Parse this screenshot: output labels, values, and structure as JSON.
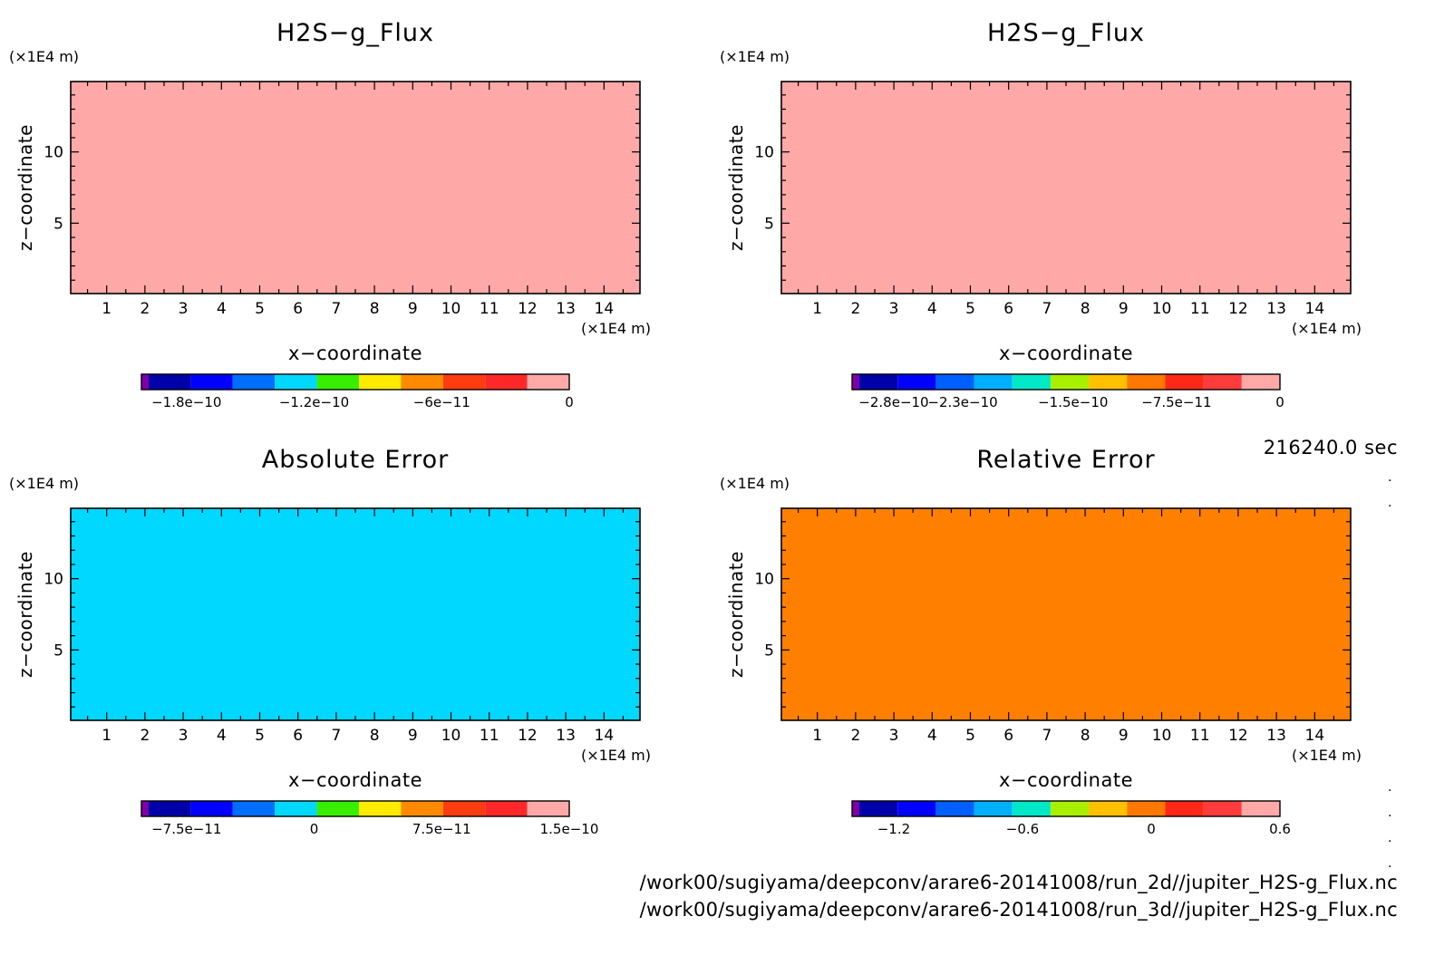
{
  "time_label": "216240.0 sec",
  "footer": {
    "line1": "/work00/sugiyama/deepconv/arare6-20141008/run_2d//jupiter_H2S-g_Flux.nc",
    "line2": "/work00/sugiyama/deepconv/arare6-20141008/run_3d//jupiter_H2S-g_Flux.nc"
  },
  "chart_data": [
    {
      "type": "heatmap",
      "title": "H2S−g_Flux",
      "xlabel": "x−coordinate",
      "ylabel": "z−coordinate",
      "x_unit": "(×1E4 m)",
      "y_unit": "(×1E4 m)",
      "xlim": [
        0.06,
        14.94
      ],
      "ylim": [
        0.06,
        14.94
      ],
      "x_ticks": [
        "1",
        "2",
        "3",
        "4",
        "5",
        "6",
        "7",
        "8",
        "9",
        "10",
        "11",
        "12",
        "13",
        "14"
      ],
      "y_ticks": [
        "5",
        "10"
      ],
      "field_color": "#ffa8a8",
      "field_description": "uniform field at top colour level (0)",
      "colorbar": {
        "colors": [
          "#7f00a8",
          "#0000a8",
          "#0000ff",
          "#006fff",
          "#00d8ff",
          "#38ee00",
          "#ffea00",
          "#ff8a00",
          "#ff3b10",
          "#ff2828",
          "#ffa8a8"
        ],
        "labels": [
          "−1.8e−10",
          "−1.2e−10",
          "−6e−11",
          "0"
        ],
        "label_values": [
          -1.8e-10,
          -1.2e-10,
          -6e-11,
          0
        ]
      }
    },
    {
      "type": "heatmap",
      "title": "H2S−g_Flux",
      "xlabel": "x−coordinate",
      "ylabel": "z−coordinate",
      "x_unit": "(×1E4 m)",
      "y_unit": "(×1E4 m)",
      "xlim": [
        0.06,
        14.94
      ],
      "ylim": [
        0.06,
        14.94
      ],
      "x_ticks": [
        "1",
        "2",
        "3",
        "4",
        "5",
        "6",
        "7",
        "8",
        "9",
        "10",
        "11",
        "12",
        "13",
        "14"
      ],
      "y_ticks": [
        "5",
        "10"
      ],
      "field_color": "#ffa8a8",
      "field_description": "uniform field at top colour level (0)",
      "colorbar": {
        "colors": [
          "#7f00a8",
          "#0000a8",
          "#0000ff",
          "#0060ff",
          "#00b0ff",
          "#00e8c8",
          "#a8f000",
          "#ffc000",
          "#ff7800",
          "#ff2818",
          "#ff3c3c",
          "#ffa8a8"
        ],
        "labels": [
          "−2.8e−10",
          "−2.3e−10",
          "−1.5e−10",
          "−7.5e−11",
          "0"
        ],
        "label_values": [
          -2.8e-10,
          -2.3e-10,
          -1.5e-10,
          -7.5e-11,
          0
        ]
      }
    },
    {
      "type": "heatmap",
      "title": "Absolute Error",
      "xlabel": "x−coordinate",
      "ylabel": "z−coordinate",
      "x_unit": "(×1E4 m)",
      "y_unit": "(×1E4 m)",
      "xlim": [
        0.06,
        14.94
      ],
      "ylim": [
        0.06,
        14.94
      ],
      "x_ticks": [
        "1",
        "2",
        "3",
        "4",
        "5",
        "6",
        "7",
        "8",
        "9",
        "10",
        "11",
        "12",
        "13",
        "14"
      ],
      "y_ticks": [
        "5",
        "10"
      ],
      "field_color": "#00d8ff",
      "field_description": "uniform field near 0",
      "colorbar": {
        "colors": [
          "#7f00a8",
          "#0000a8",
          "#0000ff",
          "#006fff",
          "#00d8ff",
          "#38ee00",
          "#ffea00",
          "#ff8a00",
          "#ff3b10",
          "#ff2828",
          "#ffa8a8"
        ],
        "labels": [
          "−7.5e−11",
          "0",
          "7.5e−11",
          "1.5e−10"
        ],
        "label_values": [
          -7.5e-11,
          0,
          7.5e-11,
          1.5e-10
        ]
      }
    },
    {
      "type": "heatmap",
      "title": "Relative Error",
      "xlabel": "x−coordinate",
      "ylabel": "z−coordinate",
      "x_unit": "(×1E4 m)",
      "y_unit": "(×1E4 m)",
      "xlim": [
        0.06,
        14.94
      ],
      "ylim": [
        0.06,
        14.94
      ],
      "x_ticks": [
        "1",
        "2",
        "3",
        "4",
        "5",
        "6",
        "7",
        "8",
        "9",
        "10",
        "11",
        "12",
        "13",
        "14"
      ],
      "y_ticks": [
        "5",
        "10"
      ],
      "field_color": "#ff8000",
      "field_description": "uniform field near 0",
      "colorbar": {
        "colors": [
          "#7f00a8",
          "#0000a8",
          "#0000ff",
          "#0060ff",
          "#00b0ff",
          "#00e8c8",
          "#a8f000",
          "#ffc000",
          "#ff7800",
          "#ff2818",
          "#ff3c3c",
          "#ffa8a8"
        ],
        "labels": [
          "−1.2",
          "−0.6",
          "0",
          "0.6"
        ],
        "label_values": [
          -1.2,
          -0.6,
          0,
          0.6
        ]
      }
    }
  ]
}
